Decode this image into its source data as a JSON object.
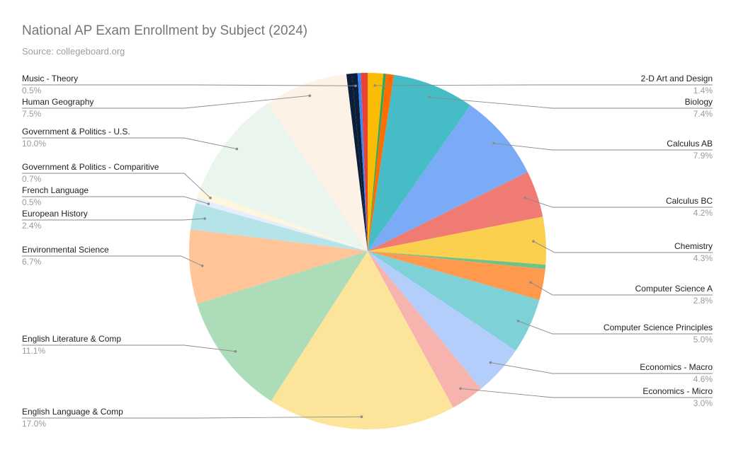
{
  "chart_data": {
    "type": "pie",
    "title": "National AP Exam Enrollment by Subject (2024)",
    "subtitle": "Source: collegeboard.org",
    "slices": [
      {
        "label": "2-D Art and Design",
        "pct_label": "1.4%",
        "value": 1.4,
        "color": "#fbbc04"
      },
      {
        "label": "",
        "pct_label": "",
        "value": 0.25,
        "color": "#34a853"
      },
      {
        "label": "",
        "pct_label": "",
        "value": 0.7,
        "color": "#ff6d01"
      },
      {
        "label": "Biology",
        "pct_label": "7.4%",
        "value": 7.4,
        "color": "#46bdc6"
      },
      {
        "label": "Calculus AB",
        "pct_label": "7.9%",
        "value": 7.9,
        "color": "#7baaf7"
      },
      {
        "label": "Calculus BC",
        "pct_label": "4.2%",
        "value": 4.2,
        "color": "#f07b72"
      },
      {
        "label": "Chemistry",
        "pct_label": "4.3%",
        "value": 4.3,
        "color": "#fcd04f"
      },
      {
        "label": "",
        "pct_label": "",
        "value": 0.4,
        "color": "#71c287"
      },
      {
        "label": "Computer Science A",
        "pct_label": "2.8%",
        "value": 2.8,
        "color": "#ff994d"
      },
      {
        "label": "Computer Science Principles",
        "pct_label": "5.0%",
        "value": 5.0,
        "color": "#7ed1d7"
      },
      {
        "label": "Economics - Macro",
        "pct_label": "4.6%",
        "value": 4.6,
        "color": "#b3cefb"
      },
      {
        "label": "Economics - Micro",
        "pct_label": "3.0%",
        "value": 3.0,
        "color": "#f7b4ae"
      },
      {
        "label": "English Language & Comp",
        "pct_label": "17.0%",
        "value": 17.0,
        "color": "#fde49b"
      },
      {
        "label": "English Literature & Comp",
        "pct_label": "11.1%",
        "value": 11.1,
        "color": "#addcb9"
      },
      {
        "label": "Environmental Science",
        "pct_label": "6.7%",
        "value": 6.7,
        "color": "#ffc599"
      },
      {
        "label": "European History",
        "pct_label": "2.4%",
        "value": 2.4,
        "color": "#b5e4e8"
      },
      {
        "label": "French Language",
        "pct_label": "0.5%",
        "value": 0.5,
        "color": "#e6eefd"
      },
      {
        "label": "Government & Politics - Comparitive",
        "pct_label": "0.7%",
        "value": 0.7,
        "color": "#fff6de"
      },
      {
        "label": "Government & Politics - U.S.",
        "pct_label": "10.0%",
        "value": 10.0,
        "color": "#eaf6ed"
      },
      {
        "label": "Human Geography",
        "pct_label": "7.5%",
        "value": 7.5,
        "color": "#fef1e6"
      },
      {
        "label": "",
        "pct_label": "",
        "value": 0.5,
        "color": "#0b1f3a"
      },
      {
        "label": "Music - Theory",
        "pct_label": "0.5%",
        "value": 0.5,
        "color": "#0b1f3a"
      },
      {
        "label": "",
        "pct_label": "",
        "value": 0.3,
        "color": "#4285f4"
      },
      {
        "label": "",
        "pct_label": "",
        "value": 0.6,
        "color": "#ea4335"
      }
    ]
  }
}
